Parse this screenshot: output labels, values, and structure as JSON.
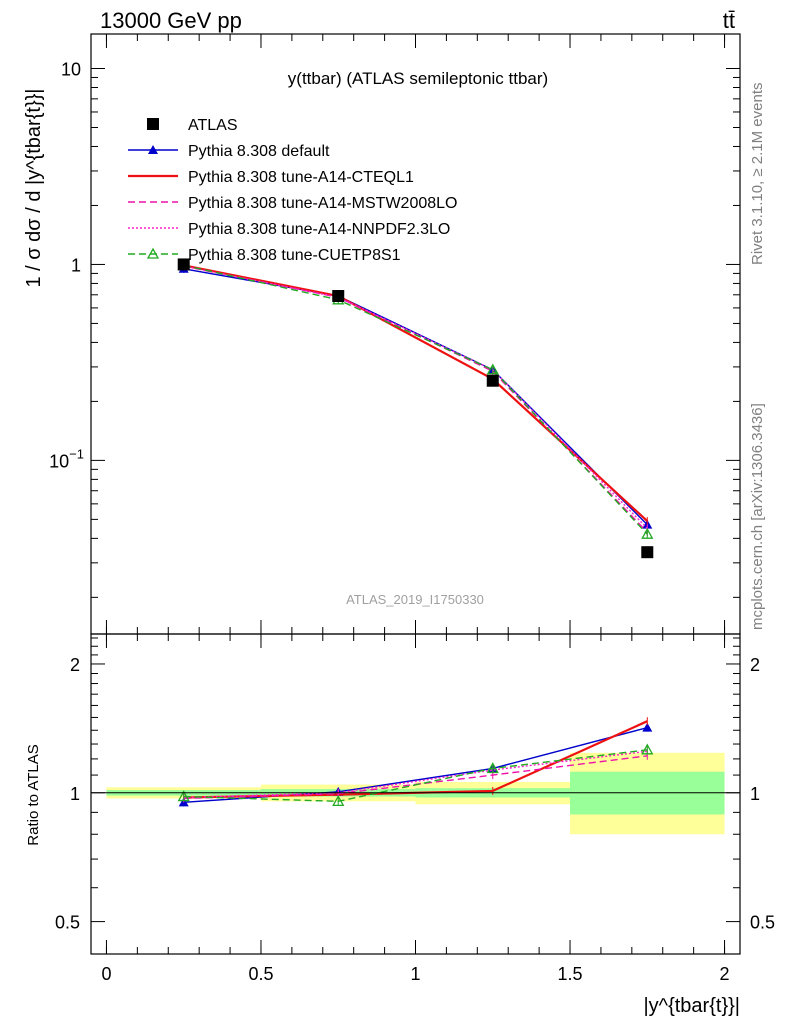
{
  "header": {
    "energy_label": "13000 GeV pp",
    "process_label": "tt̄"
  },
  "side_labels": {
    "rivet": "Rivet 3.1.10, ≥ 2.1M events",
    "mcplots": "mcplots.cern.ch [arXiv:1306.3436]"
  },
  "chart_data": [
    {
      "type": "line",
      "panel": "main",
      "title": "y(ttbar) (ATLAS semileptonic ttbar)",
      "watermark": "ATLAS_2019_I1750330",
      "ylabel": "1 / σ dσ / d |y^{tbar{t}}|",
      "yscale": "log",
      "ylim": [
        0.013,
        15
      ],
      "xlim": [
        -0.05,
        2.05
      ],
      "y_ticks": [
        {
          "value": 10,
          "label": "10"
        },
        {
          "value": 1,
          "label": "1"
        },
        {
          "value": 0.1,
          "label": "10^-1"
        }
      ],
      "legend_position": "top-left",
      "x": [
        0.25,
        0.75,
        1.25,
        1.75
      ],
      "series": [
        {
          "name": "ATLAS",
          "color": "#000000",
          "marker": "square",
          "values": [
            1.0,
            0.69,
            0.255,
            0.034
          ]
        },
        {
          "name": "Pythia 8.308 default",
          "color": "#0000cc",
          "marker": "triangle",
          "dash": "solid",
          "values": [
            0.95,
            0.69,
            0.29,
            0.047
          ]
        },
        {
          "name": "Pythia 8.308 tune-A14-CTEQL1",
          "color": "#ee1111",
          "marker": "none",
          "dash": "solid",
          "values": [
            0.99,
            0.69,
            0.26,
            0.049
          ]
        },
        {
          "name": "Pythia 8.308 tune-A14-MSTW2008LO",
          "color": "#ee11aa",
          "marker": "none",
          "dash": "dashed",
          "values": [
            0.98,
            0.68,
            0.285,
            0.043
          ]
        },
        {
          "name": "Pythia 8.308 tune-A14-NNPDF2.3LO",
          "color": "#ff22cc",
          "marker": "none",
          "dash": "dotted",
          "values": [
            0.98,
            0.68,
            0.29,
            0.045
          ]
        },
        {
          "name": "Pythia 8.308 tune-CUETP8S1",
          "color": "#22aa22",
          "marker": "open-triangle",
          "dash": "dashed",
          "values": [
            0.99,
            0.66,
            0.29,
            0.042
          ]
        }
      ]
    },
    {
      "type": "line",
      "panel": "ratio",
      "ylabel": "Ratio to ATLAS",
      "xlabel": "|y^{tbar{t}}|",
      "yscale": "log",
      "ylim": [
        0.42,
        2.35
      ],
      "xlim": [
        -0.05,
        2.05
      ],
      "y_ticks": [
        {
          "value": 2,
          "label": "2"
        },
        {
          "value": 1,
          "label": "1"
        },
        {
          "value": 0.5,
          "label": "0.5"
        }
      ],
      "x_ticks": [
        {
          "value": 0,
          "label": "0"
        },
        {
          "value": 0.5,
          "label": "0.5"
        },
        {
          "value": 1,
          "label": "1"
        },
        {
          "value": 1.5,
          "label": "1.5"
        },
        {
          "value": 2,
          "label": "2"
        }
      ],
      "bands": [
        {
          "x_low": 0.0,
          "x_high": 0.5,
          "outer": [
            0.97,
            1.03
          ],
          "inner": [
            0.985,
            1.015
          ]
        },
        {
          "x_low": 0.5,
          "x_high": 1.0,
          "outer": [
            0.955,
            1.045
          ],
          "inner": [
            0.98,
            1.02
          ]
        },
        {
          "x_low": 1.0,
          "x_high": 1.5,
          "outer": [
            0.94,
            1.06
          ],
          "inner": [
            0.975,
            1.025
          ]
        },
        {
          "x_low": 1.5,
          "x_high": 2.0,
          "outer": [
            0.8,
            1.24
          ],
          "inner": [
            0.89,
            1.12
          ]
        }
      ],
      "x": [
        0.25,
        0.75,
        1.25,
        1.75
      ],
      "series": [
        {
          "name": "Pythia 8.308 default",
          "color": "#0000cc",
          "marker": "triangle",
          "dash": "solid",
          "values": [
            0.95,
            1.005,
            1.14,
            1.42
          ]
        },
        {
          "name": "Pythia 8.308 tune-A14-CTEQL1",
          "color": "#ee1111",
          "marker": "none",
          "dash": "solid",
          "values": [
            0.975,
            0.99,
            1.01,
            1.47
          ]
        },
        {
          "name": "Pythia 8.308 tune-A14-MSTW2008LO",
          "color": "#ee11aa",
          "marker": "none",
          "dash": "dashed",
          "values": [
            0.97,
            0.995,
            1.1,
            1.22
          ]
        },
        {
          "name": "Pythia 8.308 tune-A14-NNPDF2.3LO",
          "color": "#ff22cc",
          "marker": "none",
          "dash": "dotted",
          "values": [
            0.975,
            1.0,
            1.13,
            1.25
          ]
        },
        {
          "name": "Pythia 8.308 tune-CUETP8S1",
          "color": "#22aa22",
          "marker": "open-triangle",
          "dash": "dashed",
          "values": [
            0.98,
            0.955,
            1.14,
            1.26
          ]
        }
      ]
    }
  ]
}
